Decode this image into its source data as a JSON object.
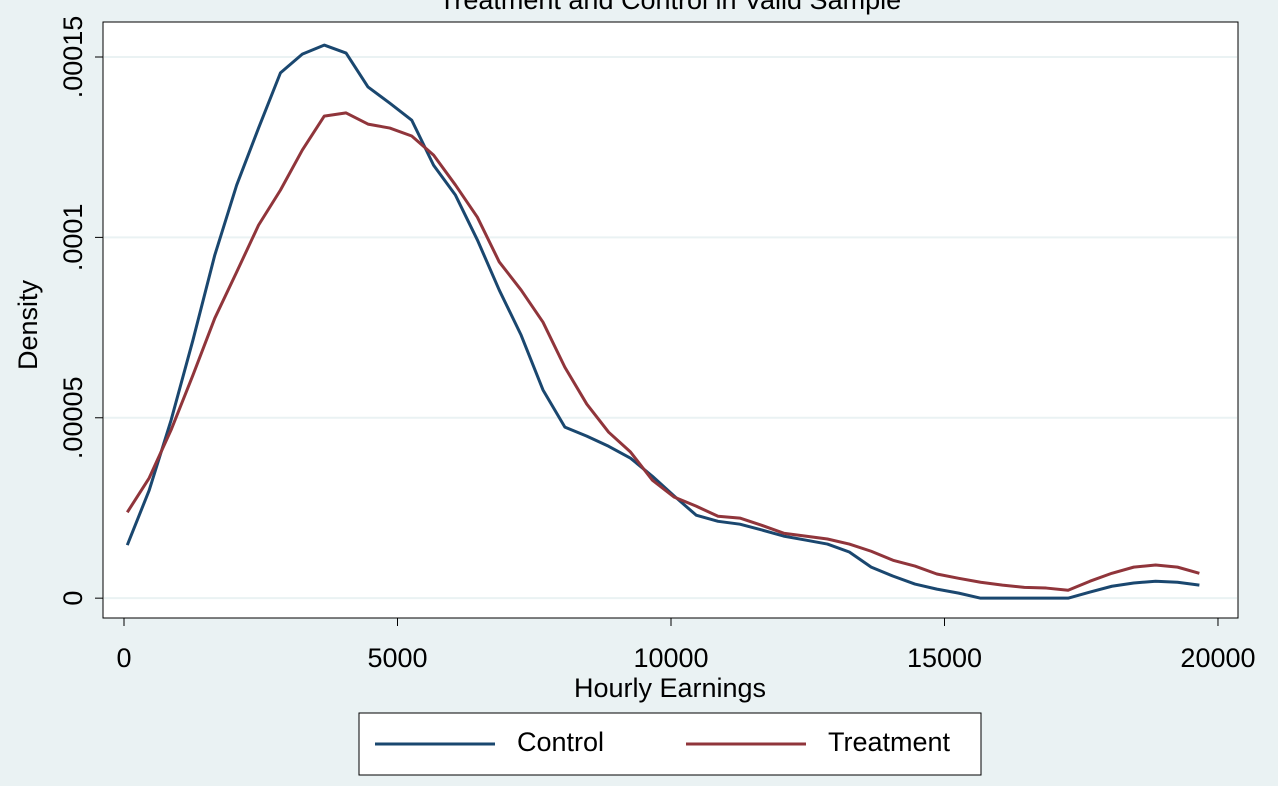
{
  "chart_data": {
    "type": "line",
    "title": "Treatment and Control in Valid Sample",
    "x_label": "Hourly Earnings",
    "y_label": "Density",
    "x": [
      60,
      460,
      860,
      1260,
      1660,
      2060,
      2460,
      2860,
      3260,
      3660,
      4060,
      4460,
      4860,
      5260,
      5660,
      6060,
      6460,
      6860,
      7260,
      7660,
      8060,
      8460,
      8860,
      9260,
      9660,
      10060,
      10460,
      10860,
      11260,
      11660,
      12060,
      12460,
      12860,
      13260,
      13660,
      14060,
      14460,
      14860,
      15260,
      15660,
      16060,
      16460,
      16860,
      17260,
      17660,
      18060,
      18460,
      18860,
      19260,
      19660
    ],
    "series": [
      {
        "name": "Control",
        "color": "#1a476f",
        "values": [
          1.47e-05,
          2.99e-05,
          4.93e-05,
          7.15e-05,
          9.51e-05,
          0.0001145,
          0.0001303,
          0.0001456,
          0.0001508,
          0.0001533,
          0.0001511,
          0.0001417,
          0.0001372,
          0.0001325,
          0.00012,
          0.0001117,
          9.93e-05,
          8.54e-05,
          7.29e-05,
          5.77e-05,
          4.74e-05,
          4.49e-05,
          4.21e-05,
          3.88e-05,
          3.38e-05,
          2.83e-05,
          2.3e-05,
          2.13e-05,
          2.05e-05,
          1.89e-05,
          1.72e-05,
          1.61e-05,
          1.5e-05,
          1.28e-05,
          8.6e-06,
          6.1e-06,
          3.9e-06,
          2.5e-06,
          1.4e-06,
          0,
          0,
          0,
          0,
          0,
          1.7e-06,
          3.3e-06,
          4.2e-06,
          4.7e-06,
          4.4e-06,
          3.6e-06
        ]
      },
      {
        "name": "Treatment",
        "color": "#90353b",
        "values": [
          2.38e-05,
          3.33e-05,
          4.66e-05,
          6.18e-05,
          7.76e-05,
          9.04e-05,
          0.0001034,
          0.0001131,
          0.0001242,
          0.0001336,
          0.0001345,
          0.0001314,
          0.0001303,
          0.0001281,
          0.0001228,
          0.0001145,
          0.0001056,
          9.32e-05,
          8.54e-05,
          7.65e-05,
          6.4e-05,
          5.38e-05,
          4.6e-05,
          4.05e-05,
          3.27e-05,
          2.8e-05,
          2.55e-05,
          2.27e-05,
          2.22e-05,
          2.02e-05,
          1.8e-05,
          1.72e-05,
          1.64e-05,
          1.5e-05,
          1.3e-05,
          1.05e-05,
          8.9e-06,
          6.7e-06,
          5.5e-06,
          4.4e-06,
          3.6e-06,
          3e-06,
          2.8e-06,
          2.2e-06,
          4.7e-06,
          6.9e-06,
          8.6e-06,
          9.2e-06,
          8.6e-06,
          6.9e-06
        ]
      }
    ],
    "xlim": [
      -384,
      20366
    ],
    "xticks": [
      0,
      5000,
      10000,
      15000,
      20000
    ],
    "ylim": [
      -5.5e-06,
      0.0001597
    ],
    "yticks": [
      {
        "value": 0,
        "label": "0"
      },
      {
        "value": 5e-05,
        "label": ".00005"
      },
      {
        "value": 0.0001,
        "label": ".0001"
      },
      {
        "value": 0.00015,
        "label": ".00015"
      }
    ],
    "grid": true,
    "legend": "bottom"
  }
}
